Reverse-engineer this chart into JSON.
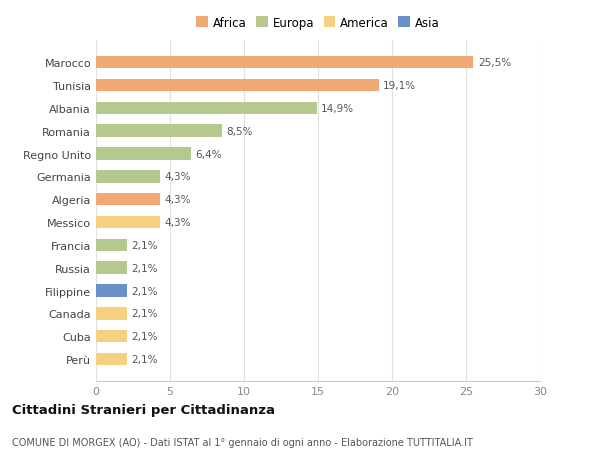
{
  "title": "Cittadini Stranieri per Cittadinanza",
  "subtitle": "COMUNE DI MORGEX (AO) - Dati ISTAT al 1° gennaio di ogni anno - Elaborazione TUTTITALIA.IT",
  "categories": [
    "Marocco",
    "Tunisia",
    "Albania",
    "Romania",
    "Regno Unito",
    "Germania",
    "Algeria",
    "Messico",
    "Francia",
    "Russia",
    "Filippine",
    "Canada",
    "Cuba",
    "Perù"
  ],
  "values": [
    25.5,
    19.1,
    14.9,
    8.5,
    6.4,
    4.3,
    4.3,
    4.3,
    2.1,
    2.1,
    2.1,
    2.1,
    2.1,
    2.1
  ],
  "labels": [
    "25,5%",
    "19,1%",
    "14,9%",
    "8,5%",
    "6,4%",
    "4,3%",
    "4,3%",
    "4,3%",
    "2,1%",
    "2,1%",
    "2,1%",
    "2,1%",
    "2,1%",
    "2,1%"
  ],
  "colors": [
    "#f0a875",
    "#f0a875",
    "#b5c98e",
    "#b5c98e",
    "#b5c98e",
    "#b5c98e",
    "#f0a875",
    "#f5d080",
    "#b5c98e",
    "#b5c98e",
    "#6b8fc7",
    "#f5d080",
    "#f5d080",
    "#f5d080"
  ],
  "legend_labels": [
    "Africa",
    "Europa",
    "America",
    "Asia"
  ],
  "legend_colors": [
    "#f0a875",
    "#b5c98e",
    "#f5d080",
    "#6b8fc7"
  ],
  "xlim": [
    0,
    30
  ],
  "xticks": [
    0,
    5,
    10,
    15,
    20,
    25,
    30
  ],
  "background_color": "#ffffff",
  "bar_height": 0.55,
  "grid_color": "#e0e0e0"
}
